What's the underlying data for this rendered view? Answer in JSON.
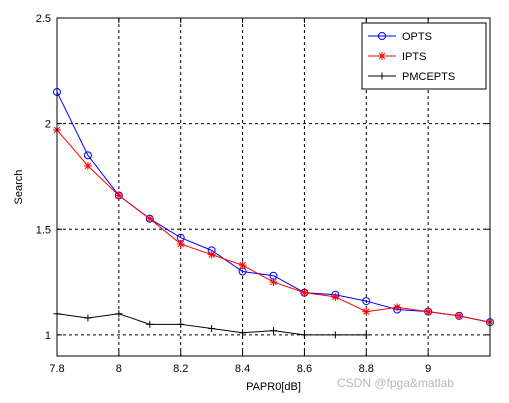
{
  "chart_data": {
    "type": "line",
    "xlabel": "PAPR0[dB]",
    "ylabel": "Search",
    "xlim": [
      7.8,
      9.2
    ],
    "ylim": [
      0.9,
      2.5
    ],
    "x_ticks": [
      7.8,
      8.0,
      8.2,
      8.4,
      8.6,
      8.8,
      9.0
    ],
    "x_tick_labels": [
      "7.8",
      "8",
      "8.2",
      "8.4",
      "8.6",
      "8.8",
      "9"
    ],
    "y_ticks": [
      1.0,
      1.5,
      2.0,
      2.5
    ],
    "y_tick_labels": [
      "1",
      "1.5",
      "2",
      "2.5"
    ],
    "grid": true,
    "legend_position": "top-right",
    "x": [
      7.8,
      7.9,
      8.0,
      8.1,
      8.2,
      8.3,
      8.4,
      8.5,
      8.6,
      8.7,
      8.8,
      8.9,
      9.0,
      9.1,
      9.2
    ],
    "series": [
      {
        "name": "OPTS",
        "color": "#0000ff",
        "marker": "circle",
        "values": [
          2.15,
          1.85,
          1.66,
          1.55,
          1.46,
          1.4,
          1.3,
          1.28,
          1.2,
          1.19,
          1.16,
          1.12,
          1.11,
          1.09,
          1.06
        ]
      },
      {
        "name": "IPTS",
        "color": "#ff0000",
        "marker": "star",
        "values": [
          1.97,
          1.8,
          1.66,
          1.55,
          1.43,
          1.38,
          1.33,
          1.25,
          1.2,
          1.18,
          1.11,
          1.13,
          1.11,
          1.09,
          1.06
        ]
      },
      {
        "name": "PMCEPTS",
        "color": "#000000",
        "marker": "plus",
        "values": [
          1.1,
          1.08,
          1.1,
          1.05,
          1.05,
          1.03,
          1.01,
          1.02,
          1.0,
          1.0,
          1.0,
          null,
          null,
          null,
          null
        ]
      }
    ]
  },
  "watermark": "CSDN @fpga&matlab"
}
